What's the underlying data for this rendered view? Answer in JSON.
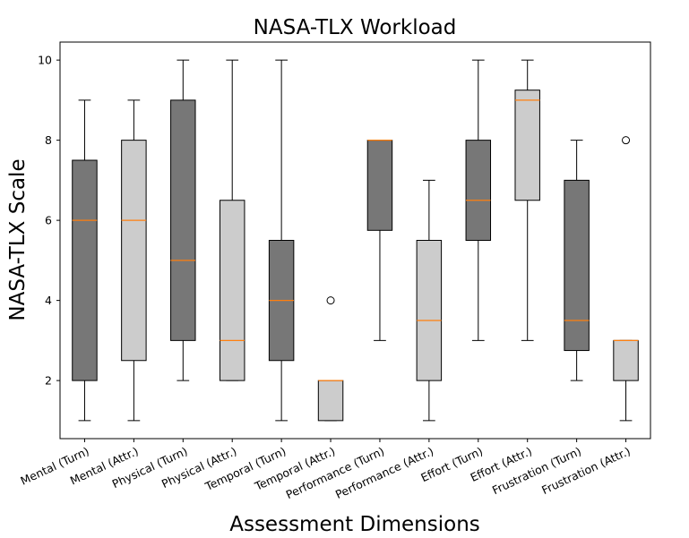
{
  "chart_data": {
    "type": "boxplot",
    "title": "NASA-TLX Workload",
    "xlabel": "Assessment Dimensions",
    "ylabel": "NASA-TLX Scale",
    "ylim": [
      0.55,
      10.45
    ],
    "yticks": [
      2,
      4,
      6,
      8,
      10
    ],
    "grid": false,
    "colors": {
      "turn": "#777777",
      "attr": "#cccccc",
      "median": "#ff7f0e",
      "edge": "#000000"
    },
    "categories": [
      "Mental (Turn)",
      "Mental (Attr.)",
      "Physical (Turn)",
      "Physical (Attr.)",
      "Temporal (Turn)",
      "Temporal (Attr.)",
      "Performance (Turn)",
      "Performance (Attr.)",
      "Effort (Turn)",
      "Effort (Attr.)",
      "Frustration (Turn)",
      "Frustration (Attr.)"
    ],
    "boxes": [
      {
        "label": "Mental (Turn)",
        "group": "turn",
        "whislo": 1,
        "q1": 2,
        "med": 6,
        "q3": 7.5,
        "whishi": 9,
        "fliers": []
      },
      {
        "label": "Mental (Attr.)",
        "group": "attr",
        "whislo": 1,
        "q1": 2.5,
        "med": 6,
        "q3": 8,
        "whishi": 9,
        "fliers": []
      },
      {
        "label": "Physical (Turn)",
        "group": "turn",
        "whislo": 2,
        "q1": 3,
        "med": 5,
        "q3": 9,
        "whishi": 10,
        "fliers": []
      },
      {
        "label": "Physical (Attr.)",
        "group": "attr",
        "whislo": 2,
        "q1": 2,
        "med": 3,
        "q3": 6.5,
        "whishi": 10,
        "fliers": []
      },
      {
        "label": "Temporal (Turn)",
        "group": "turn",
        "whislo": 1,
        "q1": 2.5,
        "med": 4,
        "q3": 5.5,
        "whishi": 10,
        "fliers": []
      },
      {
        "label": "Temporal (Attr.)",
        "group": "attr",
        "whislo": 1,
        "q1": 1,
        "med": 2,
        "q3": 2,
        "whishi": 2,
        "fliers": [
          4
        ]
      },
      {
        "label": "Performance (Turn)",
        "group": "turn",
        "whislo": 3,
        "q1": 5.75,
        "med": 8,
        "q3": 8,
        "whishi": 8,
        "fliers": []
      },
      {
        "label": "Performance (Attr.)",
        "group": "attr",
        "whislo": 1,
        "q1": 2,
        "med": 3.5,
        "q3": 5.5,
        "whishi": 7,
        "fliers": []
      },
      {
        "label": "Effort (Turn)",
        "group": "turn",
        "whislo": 3,
        "q1": 5.5,
        "med": 6.5,
        "q3": 8,
        "whishi": 10,
        "fliers": []
      },
      {
        "label": "Effort (Attr.)",
        "group": "attr",
        "whislo": 3,
        "q1": 6.5,
        "med": 9,
        "q3": 9.25,
        "whishi": 10,
        "fliers": []
      },
      {
        "label": "Frustration (Turn)",
        "group": "turn",
        "whislo": 2,
        "q1": 2.75,
        "med": 3.5,
        "q3": 7,
        "whishi": 8,
        "fliers": []
      },
      {
        "label": "Frustration (Attr.)",
        "group": "attr",
        "whislo": 1,
        "q1": 2,
        "med": 3,
        "q3": 3,
        "whishi": 3,
        "fliers": [
          8
        ]
      }
    ]
  }
}
